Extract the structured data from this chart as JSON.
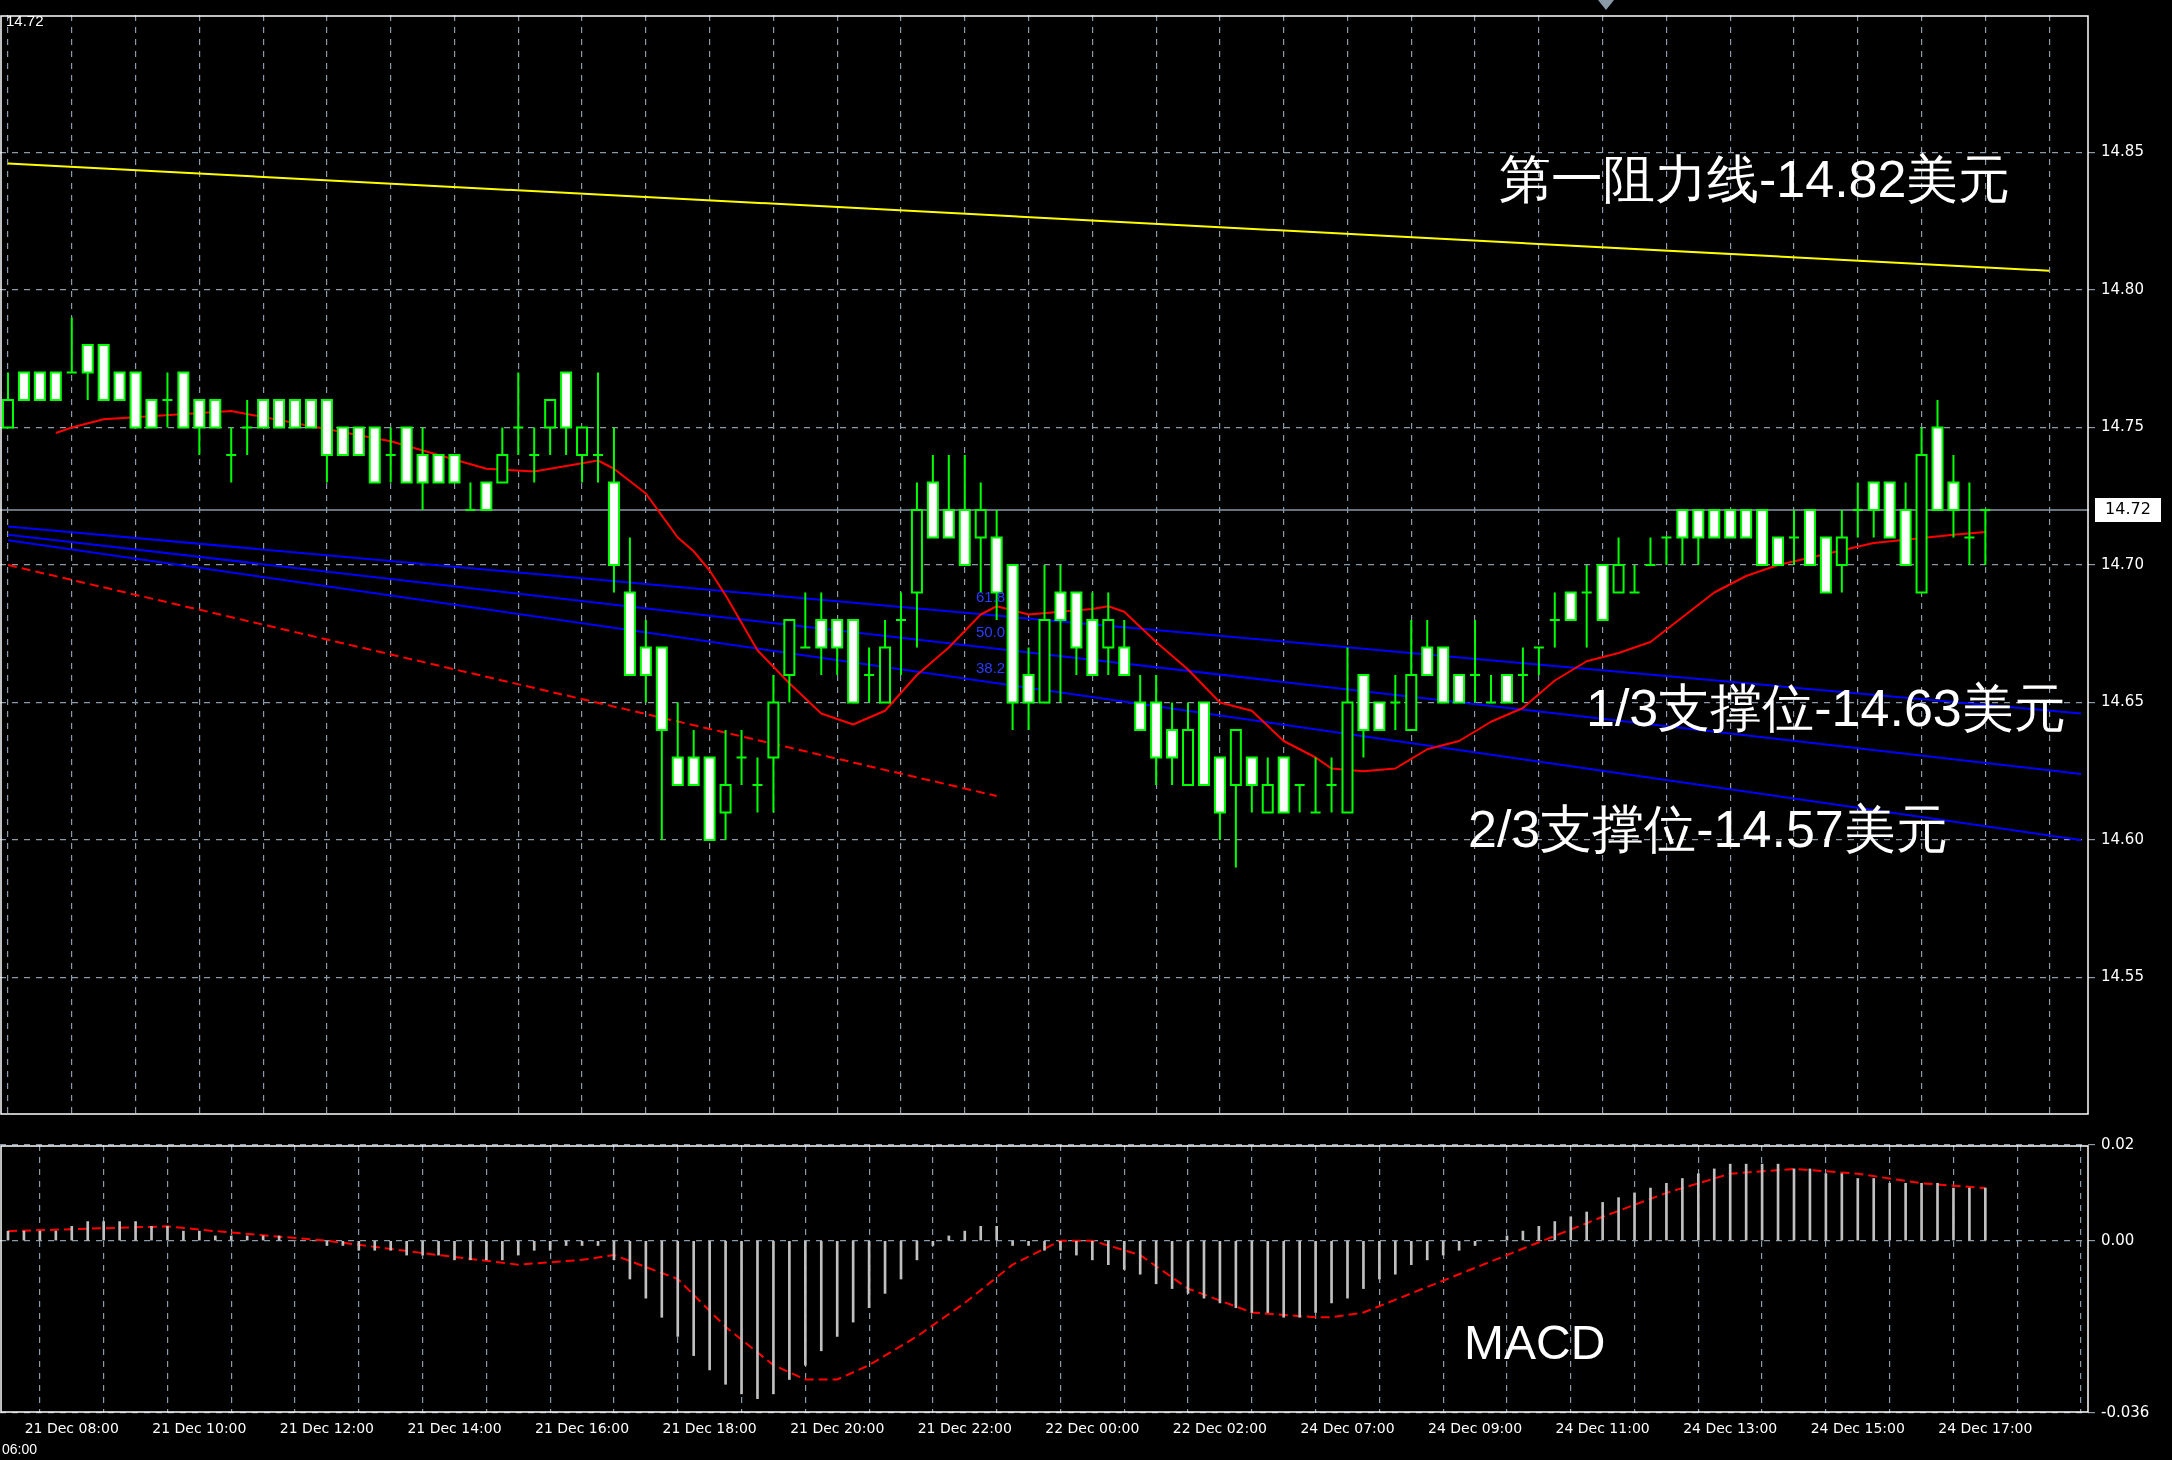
{
  "chart_data": [
    {
      "type": "candlestick",
      "color": "#00ff00",
      "grid": true,
      "tick_labels": "y",
      "marker": "none",
      "categories": [
        null,
        null,
        null,
        null,
        null,
        null,
        null,
        null,
        null,
        null,
        null,
        null,
        null,
        null,
        null,
        null,
        null,
        null,
        null,
        null,
        null,
        null,
        null,
        null,
        null,
        null,
        null,
        null,
        null,
        null,
        null,
        null,
        null,
        null,
        null,
        null,
        null,
        null,
        null,
        null,
        null,
        null,
        null,
        null,
        null,
        null,
        null,
        null,
        null,
        null,
        null,
        null,
        null,
        null,
        null,
        null,
        null,
        null,
        null,
        null,
        null,
        null,
        null,
        null,
        null,
        null,
        null,
        null,
        null,
        null,
        null,
        null,
        null,
        null,
        null,
        null,
        null,
        null,
        null,
        null,
        null,
        null,
        null,
        null,
        null,
        null,
        null,
        null,
        null,
        null,
        null,
        null,
        null,
        null,
        null,
        null,
        null,
        null,
        null,
        null,
        null,
        null,
        null,
        null,
        null,
        null,
        null,
        null,
        null,
        null,
        null,
        null,
        null,
        null,
        null,
        null,
        null,
        null,
        null,
        null,
        null,
        null,
        null,
        null,
        null,
        null,
        null,
        null,
        null,
        null,
        null
      ],
      "ohlc": [
        [
          14.75,
          14.77,
          14.75,
          14.76
        ],
        [
          14.77,
          14.77,
          14.76,
          14.76
        ],
        [
          14.77,
          14.77,
          14.76,
          14.76
        ],
        [
          14.77,
          14.77,
          14.76,
          14.76
        ],
        [
          14.77,
          14.79,
          14.77,
          14.77
        ],
        [
          14.78,
          14.78,
          14.76,
          14.77
        ],
        [
          14.78,
          14.78,
          14.76,
          14.76
        ],
        [
          14.77,
          14.77,
          14.76,
          14.76
        ],
        [
          14.77,
          14.77,
          14.75,
          14.75
        ],
        [
          14.76,
          14.76,
          14.75,
          14.75
        ],
        [
          14.76,
          14.77,
          14.75,
          14.76
        ],
        [
          14.77,
          14.77,
          14.75,
          14.75
        ],
        [
          14.76,
          14.76,
          14.74,
          14.75
        ],
        [
          14.76,
          14.76,
          14.75,
          14.75
        ],
        [
          14.74,
          14.75,
          14.73,
          14.74
        ],
        [
          14.75,
          14.76,
          14.74,
          14.75
        ],
        [
          14.76,
          14.76,
          14.75,
          14.75
        ],
        [
          14.76,
          14.76,
          14.75,
          14.75
        ],
        [
          14.76,
          14.76,
          14.75,
          14.75
        ],
        [
          14.76,
          14.76,
          14.75,
          14.75
        ],
        [
          14.76,
          14.76,
          14.73,
          14.74
        ],
        [
          14.75,
          14.75,
          14.74,
          14.74
        ],
        [
          14.75,
          14.75,
          14.74,
          14.74
        ],
        [
          14.75,
          14.75,
          14.73,
          14.73
        ],
        [
          14.74,
          14.75,
          14.73,
          14.74
        ],
        [
          14.75,
          14.75,
          14.73,
          14.73
        ],
        [
          14.74,
          14.75,
          14.72,
          14.73
        ],
        [
          14.74,
          14.74,
          14.73,
          14.73
        ],
        [
          14.74,
          14.74,
          14.73,
          14.73
        ],
        [
          14.72,
          14.73,
          14.72,
          14.72
        ],
        [
          14.73,
          14.73,
          14.72,
          14.72
        ],
        [
          14.73,
          14.75,
          14.73,
          14.74
        ],
        [
          14.75,
          14.77,
          14.74,
          14.75
        ],
        [
          14.74,
          14.75,
          14.73,
          14.74
        ],
        [
          14.75,
          14.76,
          14.74,
          14.76
        ],
        [
          14.77,
          14.77,
          14.74,
          14.75
        ],
        [
          14.74,
          14.75,
          14.73,
          14.75
        ],
        [
          14.74,
          14.77,
          14.73,
          14.74
        ],
        [
          14.73,
          14.75,
          14.69,
          14.7
        ],
        [
          14.69,
          14.71,
          14.66,
          14.66
        ],
        [
          14.67,
          14.68,
          14.65,
          14.66
        ],
        [
          14.67,
          14.67,
          14.6,
          14.64
        ],
        [
          14.63,
          14.65,
          14.62,
          14.62
        ],
        [
          14.63,
          14.64,
          14.62,
          14.62
        ],
        [
          14.63,
          14.63,
          14.6,
          14.6
        ],
        [
          14.61,
          14.64,
          14.6,
          14.62
        ],
        [
          14.63,
          14.64,
          14.62,
          14.63
        ],
        [
          14.62,
          14.63,
          14.61,
          14.62
        ],
        [
          14.63,
          14.66,
          14.61,
          14.65
        ],
        [
          14.66,
          14.68,
          14.65,
          14.68
        ],
        [
          14.67,
          14.69,
          14.67,
          14.67
        ],
        [
          14.68,
          14.69,
          14.66,
          14.67
        ],
        [
          14.68,
          14.68,
          14.66,
          14.67
        ],
        [
          14.68,
          14.68,
          14.65,
          14.65
        ],
        [
          14.66,
          14.67,
          14.65,
          14.66
        ],
        [
          14.65,
          14.68,
          14.65,
          14.67
        ],
        [
          14.68,
          14.69,
          14.66,
          14.68
        ],
        [
          14.69,
          14.73,
          14.67,
          14.72
        ],
        [
          14.73,
          14.74,
          14.71,
          14.71
        ],
        [
          14.72,
          14.74,
          14.71,
          14.71
        ],
        [
          14.72,
          14.74,
          14.7,
          14.7
        ],
        [
          14.71,
          14.73,
          14.69,
          14.72
        ],
        [
          14.71,
          14.72,
          14.68,
          14.69
        ],
        [
          14.7,
          14.7,
          14.64,
          14.65
        ],
        [
          14.66,
          14.67,
          14.64,
          14.65
        ],
        [
          14.65,
          14.7,
          14.65,
          14.68
        ],
        [
          14.69,
          14.7,
          14.65,
          14.68
        ],
        [
          14.69,
          14.69,
          14.66,
          14.67
        ],
        [
          14.68,
          14.69,
          14.66,
          14.66
        ],
        [
          14.67,
          14.69,
          14.66,
          14.68
        ],
        [
          14.67,
          14.68,
          14.66,
          14.66
        ],
        [
          14.65,
          14.66,
          14.64,
          14.64
        ],
        [
          14.65,
          14.66,
          14.62,
          14.63
        ],
        [
          14.64,
          14.65,
          14.62,
          14.63
        ],
        [
          14.62,
          14.65,
          14.62,
          14.64
        ],
        [
          14.65,
          14.65,
          14.62,
          14.62
        ],
        [
          14.63,
          14.63,
          14.6,
          14.61
        ],
        [
          14.62,
          14.64,
          14.59,
          14.64
        ],
        [
          14.63,
          14.63,
          14.61,
          14.62
        ],
        [
          14.61,
          14.63,
          14.61,
          14.62
        ],
        [
          14.63,
          14.63,
          14.61,
          14.61
        ],
        [
          14.62,
          14.62,
          14.61,
          14.62
        ],
        [
          14.61,
          14.63,
          14.61,
          14.61
        ],
        [
          14.62,
          14.63,
          14.61,
          14.62
        ],
        [
          14.61,
          14.67,
          14.61,
          14.65
        ],
        [
          14.66,
          14.66,
          14.63,
          14.64
        ],
        [
          14.65,
          14.65,
          14.64,
          14.64
        ],
        [
          14.65,
          14.66,
          14.64,
          14.65
        ],
        [
          14.64,
          14.68,
          14.64,
          14.66
        ],
        [
          14.67,
          14.68,
          14.66,
          14.66
        ],
        [
          14.67,
          14.67,
          14.65,
          14.65
        ],
        [
          14.66,
          14.66,
          14.65,
          14.65
        ],
        [
          14.66,
          14.68,
          14.65,
          14.66
        ],
        [
          14.65,
          14.66,
          14.65,
          14.65
        ],
        [
          14.66,
          14.66,
          14.65,
          14.65
        ],
        [
          14.66,
          14.67,
          14.65,
          14.66
        ],
        [
          14.67,
          14.67,
          14.66,
          14.67
        ],
        [
          14.68,
          14.69,
          14.67,
          14.68
        ],
        [
          14.69,
          14.69,
          14.68,
          14.68
        ],
        [
          14.69,
          14.7,
          14.67,
          14.69
        ],
        [
          14.7,
          14.7,
          14.68,
          14.68
        ],
        [
          14.69,
          14.71,
          14.69,
          14.7
        ],
        [
          14.69,
          14.7,
          14.69,
          14.69
        ],
        [
          14.7,
          14.71,
          14.7,
          14.7
        ],
        [
          14.71,
          14.71,
          14.7,
          14.71
        ],
        [
          14.72,
          14.72,
          14.7,
          14.71
        ],
        [
          14.72,
          14.72,
          14.7,
          14.71
        ],
        [
          14.72,
          14.72,
          14.71,
          14.71
        ],
        [
          14.72,
          14.72,
          14.71,
          14.71
        ],
        [
          14.72,
          14.72,
          14.71,
          14.71
        ],
        [
          14.72,
          14.72,
          14.7,
          14.7
        ],
        [
          14.71,
          14.71,
          14.7,
          14.7
        ],
        [
          14.71,
          14.72,
          14.7,
          14.71
        ],
        [
          14.72,
          14.72,
          14.7,
          14.7
        ],
        [
          14.71,
          14.71,
          14.69,
          14.69
        ],
        [
          14.7,
          14.72,
          14.69,
          14.71
        ],
        [
          14.72,
          14.73,
          14.71,
          14.72
        ],
        [
          14.73,
          14.73,
          14.71,
          14.72
        ],
        [
          14.73,
          14.73,
          14.71,
          14.71
        ],
        [
          14.72,
          14.73,
          14.7,
          14.7
        ],
        [
          14.69,
          14.75,
          14.69,
          14.74
        ],
        [
          14.75,
          14.76,
          14.72,
          14.72
        ],
        [
          14.73,
          14.74,
          14.71,
          14.72
        ],
        [
          14.71,
          14.73,
          14.7,
          14.71
        ],
        [
          14.72,
          14.72,
          14.7,
          14.72
        ],
        null,
        null,
        null,
        null,
        null,
        null
      ],
      "colors": [
        "#000000",
        "#ffffff",
        "#ffffff",
        "#ffffff",
        "#00ff00",
        "#ffffff",
        "#ffffff",
        "#ffffff",
        "#ffffff",
        "#ffffff",
        "#00ff00",
        "#ffffff",
        "#ffffff",
        "#ffffff",
        "#00ff00",
        "#00ff00",
        "#ffffff",
        "#ffffff",
        "#ffffff",
        "#ffffff",
        "#ffffff",
        "#ffffff",
        "#ffffff",
        "#ffffff",
        "#00ff00",
        "#ffffff",
        "#ffffff",
        "#ffffff",
        "#ffffff",
        "#00ff00",
        "#ffffff",
        "#000000",
        "#00ff00",
        "#00ff00",
        "#000000",
        "#ffffff",
        "#000000",
        "#00ff00",
        "#ffffff",
        "#ffffff",
        "#ffffff",
        "#ffffff",
        "#ffffff",
        "#ffffff",
        "#ffffff",
        "#000000",
        "#00ff00",
        "#00ff00",
        "#000000",
        "#000000",
        "#00ff00",
        "#ffffff",
        "#ffffff",
        "#ffffff",
        "#00ff00",
        "#000000",
        "#00ff00",
        "#000000",
        "#ffffff",
        "#ffffff",
        "#ffffff",
        "#000000",
        "#ffffff",
        "#ffffff",
        "#ffffff",
        "#000000",
        "#ffffff",
        "#ffffff",
        "#ffffff",
        "#000000",
        "#ffffff",
        "#ffffff",
        "#ffffff",
        "#ffffff",
        "#000000",
        "#ffffff",
        "#ffffff",
        "#000000",
        "#ffffff",
        "#000000",
        "#ffffff",
        "#00ff00",
        "#00ff00",
        "#00ff00",
        "#000000",
        "#ffffff",
        "#ffffff",
        "#00ff00",
        "#000000",
        "#ffffff",
        "#ffffff",
        "#ffffff",
        "#00ff00",
        "#00ff00",
        "#ffffff",
        "#00ff00",
        "#00ff00",
        "#00ff00",
        "#ffffff",
        "#00ff00",
        "#ffffff",
        "#000000",
        "#00ff00",
        "#00ff00",
        "#00ff00",
        "#ffffff",
        "#ffffff",
        "#ffffff",
        "#ffffff",
        "#ffffff",
        "#ffffff",
        "#ffffff",
        "#00ff00",
        "#ffffff",
        "#ffffff",
        "#000000",
        "#00ff00",
        "#ffffff",
        "#ffffff",
        "#ffffff",
        "#000000",
        "#ffffff",
        "#ffffff",
        "#00ff00",
        "#00ff00",
        null,
        null,
        null,
        null,
        null,
        null
      ],
      "series": [
        {
          "type": "line",
          "color": "#ff0000",
          "values": [
            null,
            null,
            null,
            14.748,
            14.75,
            null,
            14.753,
            null,
            null,
            null,
            null,
            null,
            null,
            null,
            14.756,
            null,
            null,
            null,
            null,
            null,
            null,
            null,
            null,
            null,
            14.745,
            null,
            null,
            null,
            null,
            null,
            14.735,
            null,
            null,
            14.734,
            null,
            14.736,
            null,
            14.738,
            14.735,
            null,
            14.726,
            null,
            14.71,
            14.705,
            14.698,
            14.689,
            null,
            14.669,
            null,
            14.657,
            null,
            14.646,
            null,
            14.642,
            null,
            14.647,
            null,
            14.66,
            null,
            14.67,
            null,
            14.682,
            14.685,
            null,
            14.682,
            null,
            null,
            null,
            14.684,
            14.685,
            14.683,
            null,
            14.672,
            null,
            14.662,
            null,
            14.65,
            null,
            14.647,
            null,
            14.636,
            null,
            14.63,
            14.626,
            null,
            14.625,
            null,
            14.626,
            null,
            14.633,
            null,
            14.636,
            null,
            14.643,
            null,
            14.648,
            null,
            14.658,
            null,
            14.665,
            null,
            14.668,
            null,
            14.672,
            null,
            14.681,
            null,
            14.69,
            null,
            14.696,
            null,
            14.7,
            null,
            null,
            null,
            null,
            null,
            14.708,
            null,
            null,
            null,
            null,
            14.711,
            null,
            14.712,
            null,
            null,
            null,
            null,
            null,
            null
          ]
        },
        {
          "type": "line",
          "color": "#ffff00",
          "values": [
            14.846,
            null,
            null,
            null,
            null,
            null,
            null,
            null,
            null,
            null,
            null,
            null,
            null,
            null,
            null,
            null,
            null,
            null,
            null,
            null,
            null,
            null,
            null,
            null,
            null,
            null,
            null,
            null,
            null,
            null,
            null,
            null,
            null,
            null,
            null,
            null,
            null,
            null,
            null,
            null,
            null,
            null,
            null,
            null,
            null,
            null,
            null,
            null,
            null,
            null,
            null,
            null,
            null,
            null,
            null,
            null,
            null,
            null,
            null,
            null,
            null,
            null,
            null,
            null,
            null,
            null,
            null,
            null,
            null,
            null,
            null,
            null,
            null,
            null,
            null,
            null,
            null,
            null,
            null,
            null,
            null,
            null,
            null,
            null,
            null,
            null,
            null,
            null,
            null,
            null,
            null,
            null,
            null,
            null,
            null,
            null,
            null,
            null,
            null,
            null,
            null,
            null,
            null,
            null,
            null,
            null,
            null,
            null,
            null,
            null,
            null,
            null,
            null,
            null,
            null,
            null,
            null,
            null,
            null,
            null,
            null,
            null,
            null,
            null,
            null,
            null,
            null,
            null,
            14.807,
            null,
            null
          ]
        },
        {
          "type": "line",
          "color": "#0000ff",
          "values": [
            14.714,
            null,
            null,
            null,
            null,
            null,
            null,
            null,
            null,
            null,
            null,
            null,
            null,
            null,
            null,
            null,
            null,
            null,
            null,
            null,
            null,
            null,
            null,
            null,
            null,
            null,
            null,
            null,
            null,
            null,
            null,
            null,
            null,
            null,
            null,
            null,
            null,
            null,
            null,
            null,
            null,
            null,
            null,
            null,
            null,
            null,
            null,
            null,
            null,
            null,
            null,
            null,
            null,
            null,
            null,
            null,
            null,
            null,
            null,
            null,
            null,
            null,
            null,
            null,
            null,
            null,
            null,
            null,
            null,
            null,
            null,
            null,
            null,
            null,
            null,
            null,
            null,
            null,
            null,
            null,
            null,
            null,
            null,
            null,
            null,
            null,
            null,
            null,
            null,
            null,
            null,
            null,
            null,
            null,
            null,
            null,
            null,
            null,
            null,
            null,
            null,
            null,
            null,
            null,
            null,
            null,
            null,
            null,
            null,
            null,
            null,
            null,
            null,
            null,
            null,
            null,
            null,
            null,
            null,
            null,
            null,
            null,
            null,
            null,
            null,
            null,
            null,
            null,
            null,
            null,
            14.646
          ]
        },
        {
          "type": "line",
          "color": "#0000ff",
          "values": [
            14.711,
            null,
            null,
            null,
            null,
            null,
            null,
            null,
            null,
            null,
            null,
            null,
            null,
            null,
            null,
            null,
            null,
            null,
            null,
            null,
            null,
            null,
            null,
            null,
            null,
            null,
            null,
            null,
            null,
            null,
            null,
            null,
            null,
            null,
            null,
            null,
            null,
            null,
            null,
            null,
            null,
            null,
            null,
            null,
            null,
            null,
            null,
            null,
            null,
            null,
            null,
            null,
            null,
            null,
            null,
            null,
            null,
            null,
            null,
            null,
            null,
            null,
            null,
            null,
            null,
            null,
            null,
            null,
            null,
            null,
            null,
            null,
            null,
            null,
            null,
            null,
            null,
            null,
            null,
            null,
            null,
            null,
            null,
            null,
            null,
            null,
            null,
            null,
            null,
            null,
            null,
            null,
            null,
            null,
            null,
            null,
            null,
            null,
            null,
            null,
            null,
            null,
            null,
            null,
            null,
            null,
            null,
            null,
            null,
            null,
            null,
            null,
            null,
            null,
            null,
            null,
            null,
            null,
            null,
            null,
            null,
            null,
            null,
            null,
            null,
            null,
            null,
            null,
            null,
            null,
            14.624
          ]
        },
        {
          "type": "line",
          "color": "#0000ff",
          "values": [
            14.709,
            null,
            null,
            null,
            null,
            null,
            null,
            null,
            null,
            null,
            null,
            null,
            null,
            null,
            null,
            null,
            null,
            null,
            null,
            null,
            null,
            null,
            null,
            null,
            null,
            null,
            null,
            null,
            null,
            null,
            null,
            null,
            null,
            null,
            null,
            null,
            null,
            null,
            null,
            null,
            null,
            null,
            null,
            null,
            null,
            null,
            null,
            null,
            null,
            null,
            null,
            null,
            null,
            null,
            null,
            null,
            null,
            null,
            null,
            null,
            null,
            null,
            null,
            null,
            null,
            null,
            null,
            null,
            null,
            null,
            null,
            null,
            null,
            null,
            null,
            null,
            null,
            null,
            null,
            null,
            null,
            null,
            null,
            null,
            null,
            null,
            null,
            null,
            null,
            null,
            null,
            null,
            null,
            null,
            null,
            null,
            null,
            null,
            null,
            null,
            null,
            null,
            null,
            null,
            null,
            null,
            null,
            null,
            null,
            null,
            null,
            null,
            null,
            null,
            null,
            null,
            null,
            null,
            null,
            null,
            null,
            null,
            null,
            null,
            null,
            null,
            null,
            null,
            null,
            null,
            14.6
          ]
        },
        {
          "type": "line",
          "color": "#ff0000",
          "line_style": "dashed",
          "values": [
            14.7,
            null,
            null,
            null,
            null,
            null,
            null,
            null,
            null,
            null,
            null,
            null,
            null,
            null,
            null,
            null,
            null,
            null,
            null,
            null,
            null,
            null,
            null,
            null,
            null,
            null,
            null,
            null,
            null,
            null,
            null,
            null,
            null,
            null,
            null,
            null,
            null,
            null,
            null,
            null,
            null,
            null,
            null,
            null,
            null,
            null,
            null,
            null,
            null,
            null,
            null,
            null,
            null,
            null,
            null,
            null,
            null,
            null,
            null,
            null,
            null,
            null,
            14.616,
            null,
            null,
            null,
            null,
            null,
            null,
            null,
            null,
            null,
            null,
            null,
            null,
            null,
            null,
            null,
            null,
            null,
            null,
            null,
            null,
            null,
            null,
            null,
            null,
            null,
            null,
            null,
            null,
            null,
            null,
            null,
            null,
            null,
            null,
            null,
            null,
            null,
            null,
            null,
            null,
            null,
            null,
            null,
            null,
            null,
            null,
            null,
            null,
            null,
            null,
            null,
            null,
            null,
            null,
            null,
            null,
            null,
            null,
            null,
            null,
            null,
            null,
            null,
            null,
            null,
            null,
            null,
            null
          ]
        }
      ],
      "ylim": [
        14.5,
        14.9
      ],
      "yticks": [
        14.55,
        {
          "value": 14.6,
          "label": "14.60"
        },
        14.65,
        {
          "value": 14.7,
          "label": "14.70"
        },
        14.75,
        {
          "value": 14.8,
          "label": "14.80"
        },
        14.85
      ],
      "ref_lines": [
        {
          "axis": "y",
          "value": 14.72,
          "label": "14.72",
          "color": "#8a9aa8"
        }
      ],
      "annotations": [
        "第一阻力线-14.82美元",
        "1/3支撑位-14.63美元",
        "2/3支撑位-14.57美元",
        "61.8",
        "50.0",
        "38.2",
        "14.72"
      ]
    },
    {
      "type": "bar",
      "grid": true,
      "marker": "none",
      "categories": [
        null,
        null,
        null,
        null,
        "21 Dec 08:00",
        null,
        null,
        null,
        null,
        null,
        null,
        null,
        "21 Dec 10:00",
        null,
        null,
        null,
        null,
        null,
        null,
        null,
        "21 Dec 12:00",
        null,
        null,
        null,
        null,
        null,
        null,
        null,
        "21 Dec 14:00",
        null,
        null,
        null,
        null,
        null,
        null,
        null,
        "21 Dec 16:00",
        null,
        null,
        null,
        null,
        null,
        null,
        null,
        "21 Dec 18:00",
        null,
        null,
        null,
        null,
        null,
        null,
        null,
        "21 Dec 20:00",
        null,
        null,
        null,
        null,
        null,
        null,
        null,
        "21 Dec 22:00",
        null,
        null,
        null,
        null,
        null,
        null,
        null,
        "22 Dec 00:00",
        null,
        null,
        null,
        null,
        null,
        null,
        null,
        "22 Dec 02:00",
        null,
        null,
        null,
        null,
        null,
        null,
        null,
        "24 Dec 07:00",
        null,
        null,
        null,
        null,
        null,
        null,
        null,
        "24 Dec 09:00",
        null,
        null,
        null,
        null,
        null,
        null,
        null,
        "24 Dec 11:00",
        null,
        null,
        null,
        null,
        null,
        null,
        null,
        "24 Dec 13:00",
        null,
        null,
        null,
        null,
        null,
        null,
        null,
        "24 Dec 15:00",
        null,
        null,
        null,
        null,
        null,
        null,
        null,
        "24 Dec 17:00",
        null,
        null,
        null,
        null,
        null,
        null
      ],
      "series": [
        {
          "type": "bar",
          "color": "#c0c0c0",
          "values": [
            0.002,
            0.002,
            0.002,
            0.002,
            0.003,
            0.004,
            0.004,
            0.004,
            0.004,
            0.003,
            0.003,
            0.002,
            0.002,
            0.001,
            0.001,
            0.001,
            0.001,
            0.001,
            0,
            0,
            -0.001,
            -0.001,
            -0.002,
            -0.002,
            -0.002,
            -0.003,
            -0.003,
            -0.003,
            -0.004,
            -0.004,
            -0.004,
            -0.004,
            -0.003,
            -0.002,
            -0.002,
            -0.001,
            -0.001,
            -0.001,
            -0.004,
            -0.008,
            -0.012,
            -0.016,
            -0.02,
            -0.024,
            -0.027,
            -0.03,
            -0.032,
            -0.033,
            -0.032,
            -0.029,
            -0.026,
            -0.023,
            -0.02,
            -0.017,
            -0.014,
            -0.011,
            -0.008,
            -0.004,
            -0.001,
            0.001,
            0.002,
            0.003,
            0.003,
            -0.001,
            -0.001,
            -0.002,
            -0.002,
            -0.003,
            -0.004,
            -0.005,
            -0.006,
            -0.007,
            -0.009,
            -0.01,
            -0.011,
            -0.012,
            -0.013,
            -0.014,
            -0.015,
            -0.015,
            -0.016,
            -0.016,
            -0.015,
            -0.013,
            -0.012,
            -0.01,
            -0.008,
            -0.007,
            -0.005,
            -0.004,
            -0.003,
            -0.002,
            -0.001,
            0,
            0.001,
            0.002,
            0.003,
            0.004,
            0.005,
            0.006,
            0.008,
            0.009,
            0.01,
            0.011,
            0.012,
            0.013,
            0.014,
            0.015,
            0.016,
            0.016,
            0.016,
            0.016,
            0.015,
            0.015,
            0.014,
            0.014,
            0.013,
            0.013,
            0.012,
            0.012,
            0.012,
            0.012,
            0.011,
            0.011,
            0.011,
            null,
            null,
            null,
            null,
            null,
            null
          ]
        },
        {
          "type": "line",
          "color": "#ff0000",
          "line_style": "dashed",
          "values": [
            0.002,
            null,
            null,
            null,
            null,
            null,
            null,
            null,
            null,
            null,
            0.003,
            null,
            null,
            0.002,
            null,
            null,
            null,
            null,
            null,
            null,
            0,
            null,
            null,
            null,
            null,
            null,
            null,
            -0.003,
            null,
            null,
            null,
            null,
            -0.005,
            null,
            null,
            null,
            -0.004,
            null,
            -0.003,
            null,
            null,
            null,
            -0.008,
            null,
            null,
            -0.018,
            null,
            null,
            -0.026,
            null,
            -0.029,
            null,
            -0.029,
            null,
            -0.026,
            null,
            null,
            -0.02,
            null,
            null,
            -0.013,
            null,
            null,
            -0.005,
            null,
            null,
            0,
            null,
            0,
            null,
            null,
            -0.003,
            null,
            null,
            -0.01,
            null,
            null,
            null,
            -0.015,
            null,
            null,
            null,
            -0.016,
            -0.016,
            null,
            -0.015,
            null,
            null,
            -0.011,
            null,
            null,
            -0.007,
            null,
            null,
            -0.003,
            null,
            null,
            0.001,
            null,
            null,
            0.005,
            null,
            null,
            null,
            0.01,
            null,
            null,
            null,
            0.014,
            null,
            null,
            null,
            0.015,
            null,
            null,
            null,
            0.014,
            null,
            null,
            null,
            0.012,
            null,
            null,
            null,
            0.011,
            null,
            null,
            null,
            null,
            null,
            null
          ]
        }
      ],
      "ylim": [
        -0.036,
        0.02
      ],
      "yticks": [
        -0.036,
        {
          "value": 0,
          "label": "0.00"
        },
        0.02
      ],
      "annotations": [
        "MACD",
        "06:00"
      ]
    }
  ]
}
